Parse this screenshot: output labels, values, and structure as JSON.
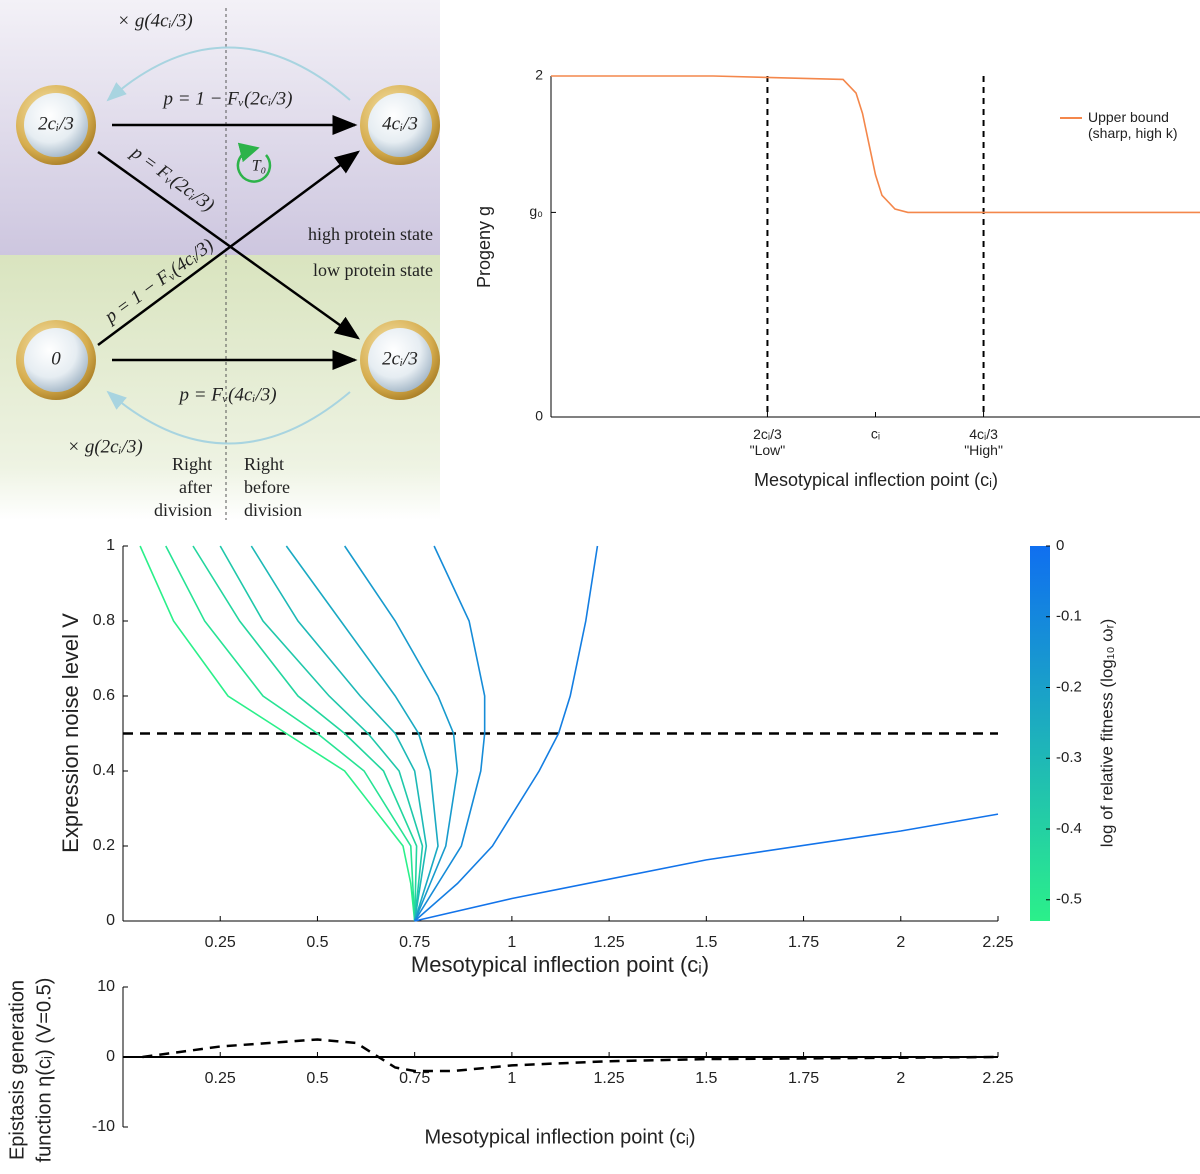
{
  "diagram": {
    "top_loop_label": "× g(4cᵢ/3)",
    "bottom_loop_label": "× g(2cᵢ/3)",
    "nodes": [
      "2cᵢ/3",
      "4cᵢ/3",
      "0",
      "2cᵢ/3"
    ],
    "edges": [
      "p = 1 − Fᵥ(2cᵢ/3)",
      "p = Fᵥ(2cᵢ/3)",
      "p = 1 − Fᵥ(4cᵢ/3)",
      "p = Fᵥ(4cᵢ/3)"
    ],
    "cycle_label": "T₀",
    "regions": [
      "high protein state",
      "low protein state"
    ],
    "timepoints": [
      [
        "Right",
        "after",
        "division"
      ],
      [
        "Right",
        "before",
        "division"
      ]
    ]
  },
  "chart_data": [
    {
      "type": "line",
      "ylabel": "Progeny g",
      "xlabel": "Mesotypical inflection point (cᵢ)",
      "xlim": [
        0,
        2
      ],
      "ylim": [
        0,
        2
      ],
      "xticks": [
        {
          "value": 0.667,
          "label": "2cᵢ/3\n\"Low\""
        },
        {
          "value": 1,
          "label": "cᵢ"
        },
        {
          "value": 1.333,
          "label": "4cᵢ/3\n\"High\""
        }
      ],
      "yticks": [
        0,
        {
          "value": 1.2,
          "label": "g₀"
        },
        2
      ],
      "reference_lines": {
        "x": [
          0.667,
          1.333
        ]
      },
      "legend": "right",
      "series": [
        {
          "name": "Upper bound\n(sharp, high k)",
          "color": "#f4874b",
          "x": [
            0,
            0.5,
            0.9,
            0.94,
            0.96,
            0.98,
            1.0,
            1.02,
            1.06,
            1.1,
            1.5,
            2.0
          ],
          "values": [
            2,
            2,
            1.98,
            1.9,
            1.78,
            1.6,
            1.42,
            1.3,
            1.22,
            1.2,
            1.2,
            1.2
          ]
        }
      ]
    },
    {
      "type": "line",
      "ylabel": "Expression noise level V",
      "xlabel": "Mesotypical inflection point (cᵢ)",
      "xlim": [
        0,
        2.25
      ],
      "ylim": [
        0,
        1
      ],
      "xticks": [
        0.25,
        0.5,
        0.75,
        1,
        1.25,
        1.5,
        1.75,
        2,
        2.25
      ],
      "yticks": [
        0,
        0.2,
        0.4,
        0.6,
        0.8,
        1
      ],
      "reference_lines": {
        "y": [
          0.5
        ]
      },
      "colorbar": {
        "label": "log of relative fitness (log₁₀ ωᵣ)",
        "clim": [
          -0.53,
          0
        ],
        "ticks": [
          0,
          -0.1,
          -0.2,
          -0.3,
          -0.4,
          -0.5
        ],
        "colormap": [
          "#2bf08a",
          "#0f6ff0"
        ]
      },
      "series": [
        {
          "color": "#2bf08a",
          "x": [
            0.044,
            0.13,
            0.27,
            0.42,
            0.57,
            0.72,
            0.74,
            0.75
          ],
          "values": [
            1,
            0.8,
            0.6,
            0.5,
            0.4,
            0.2,
            0.1,
            0
          ]
        },
        {
          "color": "#27e394",
          "x": [
            0.11,
            0.21,
            0.36,
            0.5,
            0.62,
            0.74,
            0.75
          ],
          "values": [
            1,
            0.8,
            0.6,
            0.5,
            0.4,
            0.2,
            0
          ]
        },
        {
          "color": "#23d69e",
          "x": [
            0.18,
            0.3,
            0.45,
            0.57,
            0.67,
            0.755,
            0.75
          ],
          "values": [
            1,
            0.8,
            0.6,
            0.5,
            0.4,
            0.2,
            0
          ]
        },
        {
          "color": "#20c8aa",
          "x": [
            0.25,
            0.36,
            0.53,
            0.63,
            0.71,
            0.77,
            0.75
          ],
          "values": [
            1,
            0.8,
            0.6,
            0.5,
            0.4,
            0.2,
            0
          ]
        },
        {
          "color": "#1db9b6",
          "x": [
            0.33,
            0.45,
            0.61,
            0.7,
            0.75,
            0.78,
            0.75
          ],
          "values": [
            1,
            0.8,
            0.6,
            0.5,
            0.4,
            0.2,
            0
          ]
        },
        {
          "color": "#1aaac2",
          "x": [
            0.42,
            0.56,
            0.7,
            0.76,
            0.79,
            0.81,
            0.75
          ],
          "values": [
            1,
            0.8,
            0.6,
            0.5,
            0.4,
            0.2,
            0
          ]
        },
        {
          "color": "#189bcd",
          "x": [
            0.57,
            0.7,
            0.81,
            0.85,
            0.86,
            0.83,
            0.79,
            0.75
          ],
          "values": [
            1,
            0.8,
            0.6,
            0.5,
            0.4,
            0.2,
            0.1,
            0
          ]
        },
        {
          "color": "#168cd8",
          "x": [
            0.8,
            0.89,
            0.93,
            0.93,
            0.92,
            0.87,
            0.81,
            0.75
          ],
          "values": [
            1,
            0.8,
            0.6,
            0.5,
            0.4,
            0.2,
            0.1,
            0
          ]
        },
        {
          "color": "#147ee2",
          "x": [
            1.22,
            1.19,
            1.15,
            1.12,
            1.07,
            0.95,
            0.86,
            0.75
          ],
          "values": [
            1,
            0.8,
            0.6,
            0.5,
            0.4,
            0.2,
            0.1,
            0
          ]
        },
        {
          "color": "#1273ea",
          "x": [
            0.75,
            1,
            1.5,
            2,
            2.25
          ],
          "values": [
            0,
            0.06,
            0.163,
            0.24,
            0.285
          ]
        }
      ]
    },
    {
      "type": "line",
      "ylabel": [
        "Epistasis generation",
        "function η(cᵢ) (V=0.5)"
      ],
      "xlabel": "Mesotypical inflection point (cᵢ)",
      "xlim": [
        0,
        2.25
      ],
      "ylim": [
        -10,
        10
      ],
      "xticks": [
        0.25,
        0.5,
        0.75,
        1,
        1.25,
        1.5,
        1.75,
        2,
        2.25
      ],
      "yticks": [
        -10,
        0,
        10
      ],
      "series": [
        {
          "color": "#000000",
          "style": "dashed",
          "x": [
            0.05,
            0.25,
            0.5,
            0.6,
            0.7,
            0.75,
            0.85,
            1,
            1.25,
            1.5,
            2,
            2.25
          ],
          "values": [
            0,
            1.5,
            2.5,
            2,
            -1.5,
            -2,
            -2,
            -1.2,
            -0.6,
            -0.3,
            -0.1,
            0
          ]
        }
      ]
    }
  ]
}
